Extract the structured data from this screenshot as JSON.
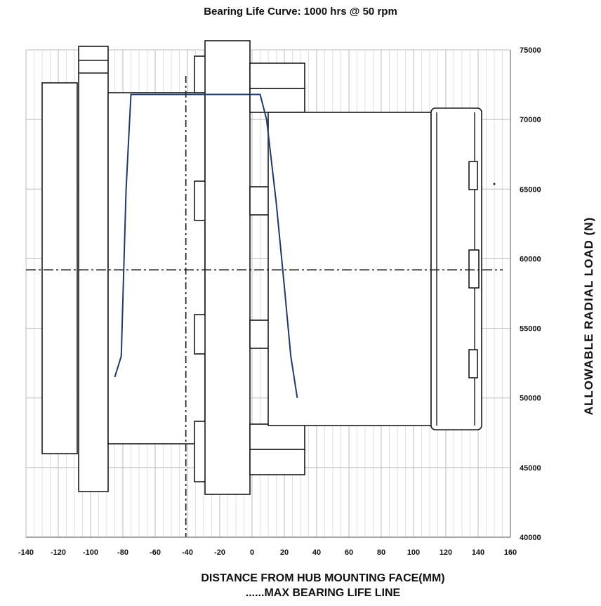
{
  "chart_data": {
    "type": "line",
    "title": "Bearing Life Curve: 1000 hrs @ 50 rpm",
    "xlabel": "DISTANCE FROM HUB MOUNTING FACE(MM)",
    "ylabel": "ALLOWABLE RADIAL LOAD (N)",
    "legend_text": "......MAX BEARING LIFE LINE",
    "xlim": [
      -140,
      160
    ],
    "ylim": [
      40000,
      75000
    ],
    "x_ticks": [
      -140,
      -120,
      -100,
      -80,
      -60,
      -40,
      -20,
      0,
      20,
      40,
      60,
      80,
      100,
      120,
      140,
      160
    ],
    "x_tick_labels": [
      "-140",
      "-120",
      "-100",
      "-80",
      "-60",
      "-40",
      "-20",
      "0",
      "20",
      "40",
      "60",
      "80",
      "100",
      "120",
      "140",
      "160"
    ],
    "y_ticks": [
      40000,
      45000,
      50000,
      55000,
      60000,
      65000,
      70000,
      75000
    ],
    "y_tick_labels": [
      "40000",
      "45000",
      "50000",
      "55000",
      "60000",
      "65000",
      "70000",
      "75000"
    ],
    "y_axis_side": "right",
    "grid": true,
    "line_color": "#1f3a6e",
    "series": [
      {
        "x": [
          -85,
          -81,
          -78,
          -75,
          -70,
          -40,
          0,
          5,
          9,
          15,
          20,
          24,
          28
        ],
        "y": [
          51500,
          53000,
          65000,
          71800,
          71800,
          71800,
          71800,
          71800,
          70000,
          64000,
          58000,
          53000,
          50000
        ]
      }
    ],
    "max_bearing_life_line_x": -41,
    "centerline_y": 59200
  }
}
